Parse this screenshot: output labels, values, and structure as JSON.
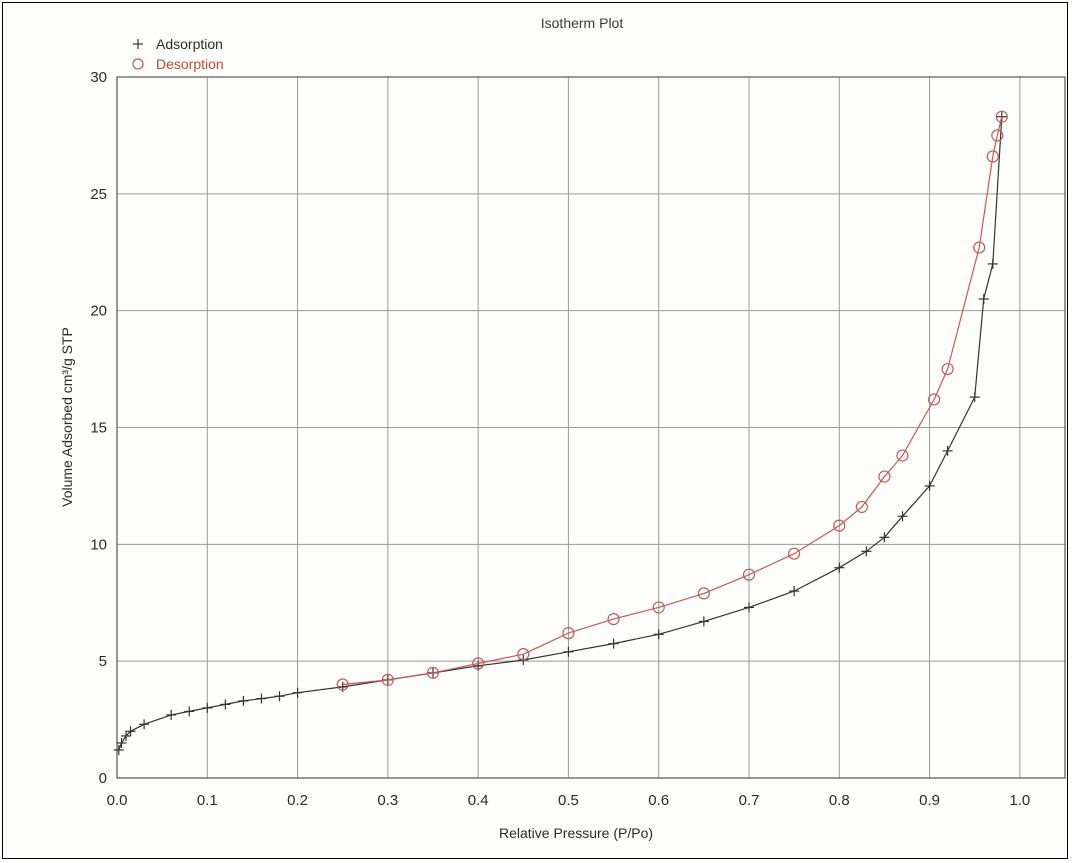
{
  "chart_data": {
    "type": "line",
    "title": "Isotherm Plot",
    "xlabel": "Relative Pressure (P/Po)",
    "ylabel": "Volume Adsorbed cm³/g STP",
    "xlim": [
      0,
      1.05
    ],
    "ylim": [
      0,
      30
    ],
    "x_ticks": [
      "0.0",
      "0.1",
      "0.2",
      "0.3",
      "0.4",
      "0.5",
      "0.6",
      "0.7",
      "0.8",
      "0.9",
      "1.0"
    ],
    "x_tick_values": [
      0,
      0.1,
      0.2,
      0.3,
      0.4,
      0.5,
      0.6,
      0.7,
      0.8,
      0.9,
      1.0
    ],
    "y_ticks": [
      "0",
      "5",
      "10",
      "15",
      "20",
      "25",
      "30"
    ],
    "y_tick_values": [
      0,
      5,
      10,
      15,
      20,
      25,
      30
    ],
    "grid": true,
    "legend_position": "top-left",
    "colors": {
      "adsorption": "#333333",
      "desorption": "#c45a5a",
      "grid": "#9a9a9a"
    },
    "series": [
      {
        "name": "Adsorption",
        "marker": "plus",
        "x": [
          0.002,
          0.005,
          0.01,
          0.015,
          0.03,
          0.06,
          0.08,
          0.1,
          0.12,
          0.14,
          0.16,
          0.18,
          0.2,
          0.25,
          0.3,
          0.35,
          0.4,
          0.45,
          0.5,
          0.55,
          0.6,
          0.65,
          0.7,
          0.75,
          0.8,
          0.83,
          0.85,
          0.87,
          0.9,
          0.92,
          0.95,
          0.96,
          0.97,
          0.98
        ],
        "y": [
          1.2,
          1.5,
          1.8,
          2.0,
          2.3,
          2.7,
          2.85,
          3.0,
          3.15,
          3.3,
          3.4,
          3.5,
          3.65,
          3.9,
          4.2,
          4.5,
          4.8,
          5.05,
          5.4,
          5.75,
          6.15,
          6.7,
          7.3,
          8.0,
          9.0,
          9.7,
          10.3,
          11.2,
          12.5,
          14.0,
          16.3,
          20.5,
          22.0,
          28.3
        ]
      },
      {
        "name": "Desorption",
        "marker": "circle",
        "x": [
          0.98,
          0.975,
          0.97,
          0.955,
          0.92,
          0.905,
          0.87,
          0.85,
          0.825,
          0.8,
          0.75,
          0.7,
          0.65,
          0.6,
          0.55,
          0.5,
          0.45,
          0.4,
          0.35,
          0.3,
          0.25
        ],
        "y": [
          28.3,
          27.5,
          26.6,
          22.7,
          17.5,
          16.2,
          13.8,
          12.9,
          11.6,
          10.8,
          9.6,
          8.7,
          7.9,
          7.3,
          6.8,
          6.2,
          5.3,
          4.9,
          4.5,
          4.2,
          4.0
        ]
      }
    ]
  }
}
